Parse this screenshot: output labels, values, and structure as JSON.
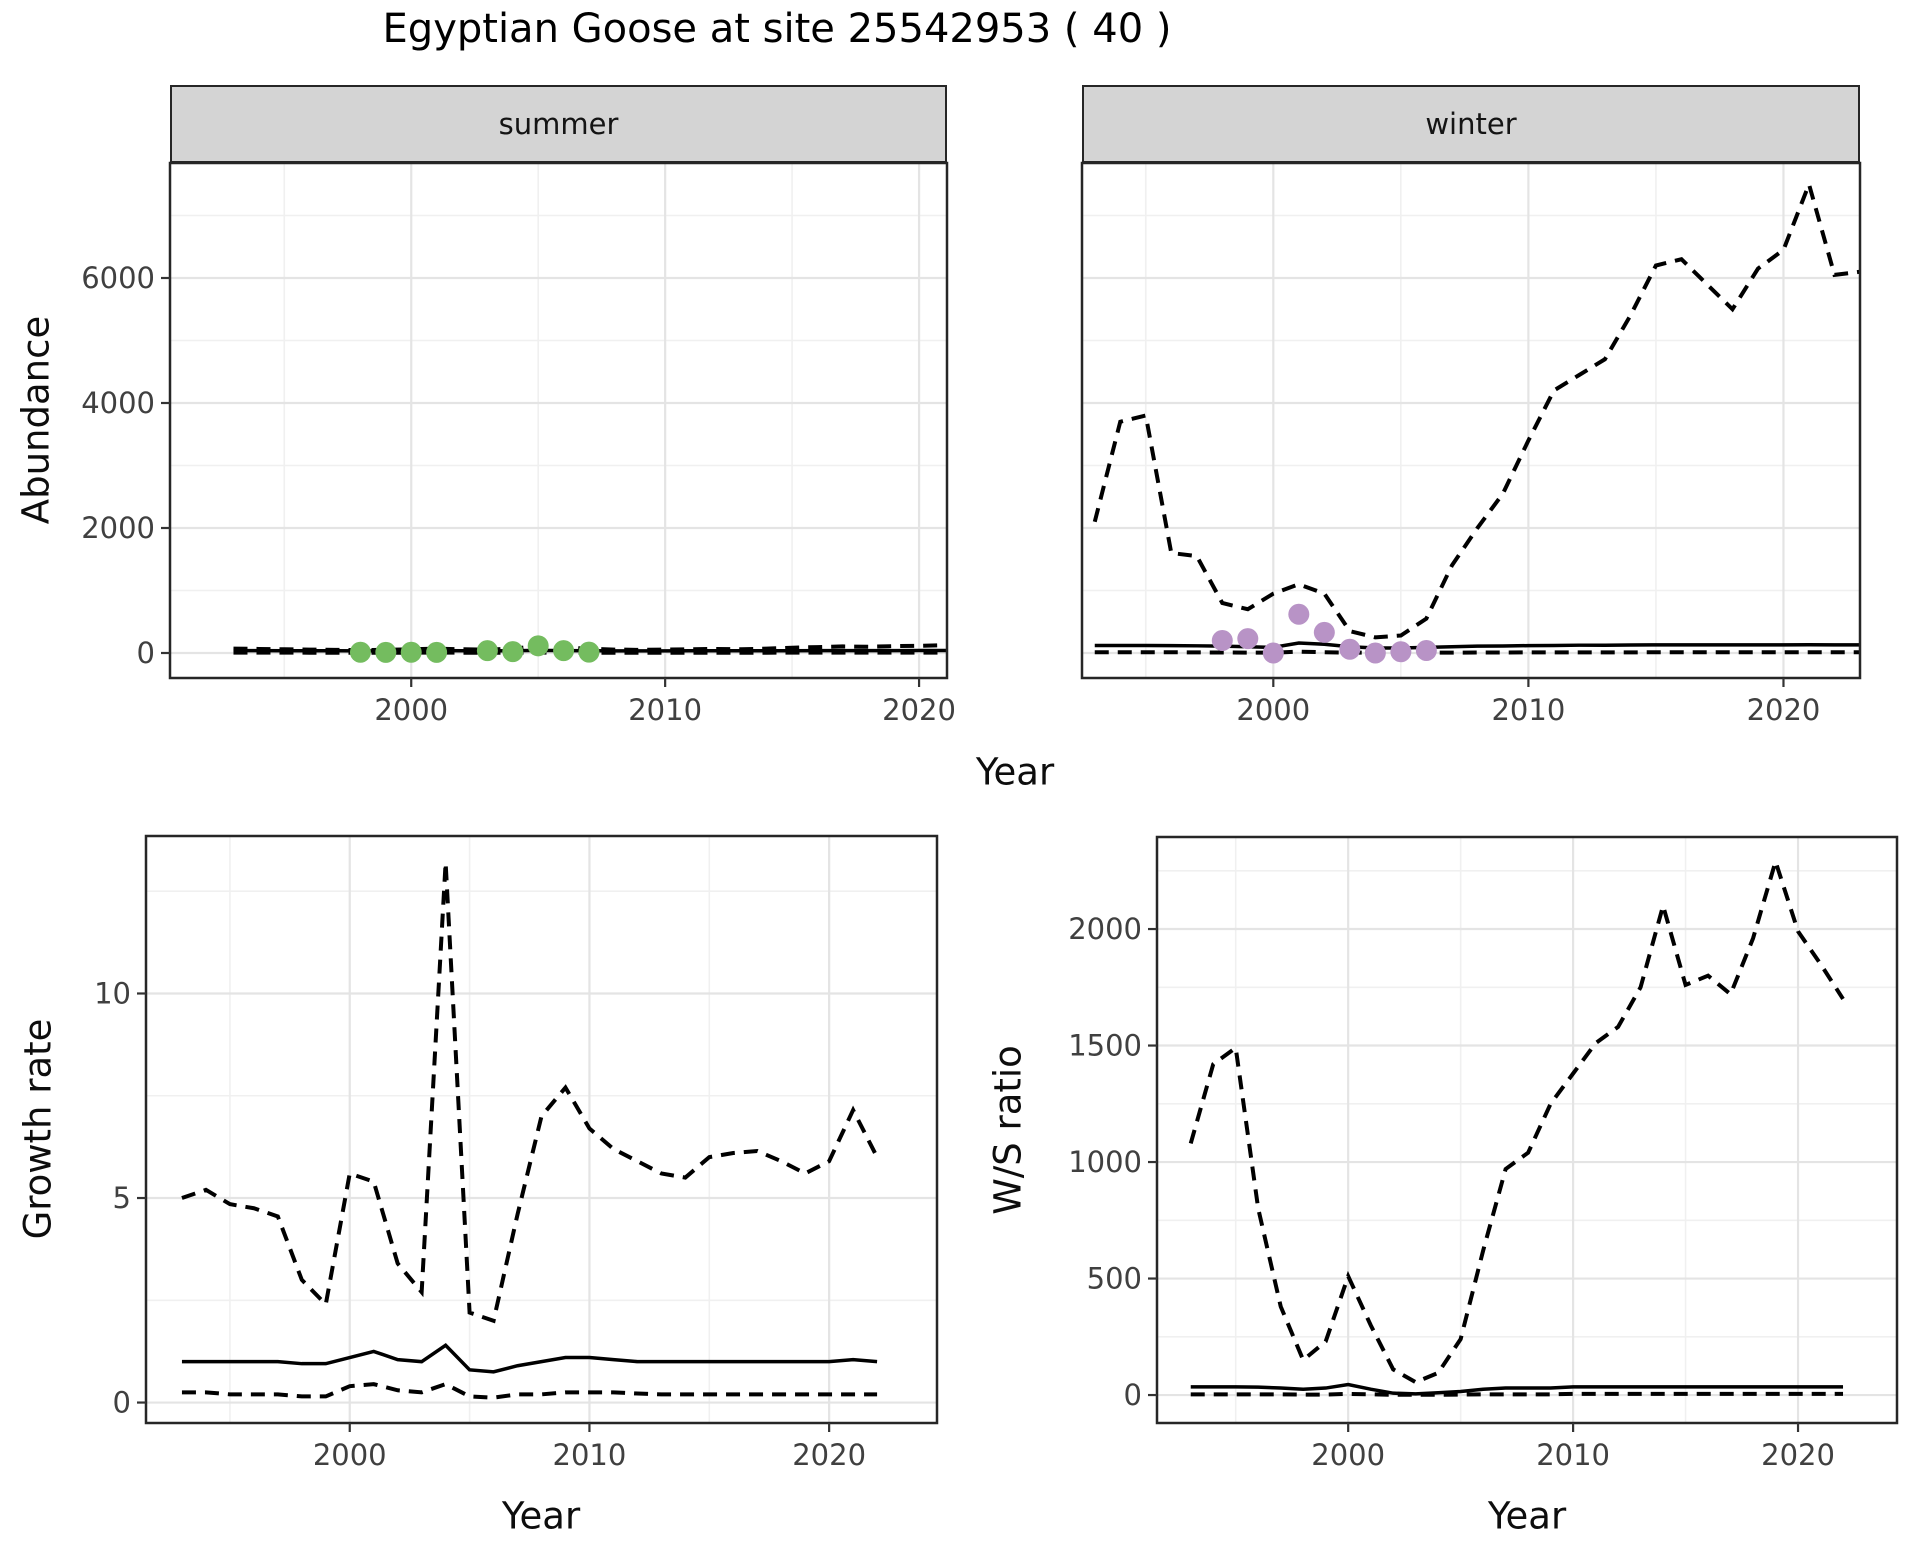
{
  "title": "Egyptian Goose at site 25542953 ( 40 )",
  "colors": {
    "summer_point": "#74bc5f",
    "winter_point": "#b893c6",
    "line": "#000000",
    "grid_major": "#e4e4e4",
    "grid_minor": "#f0f0f0",
    "strip_background": "#d4d4d4",
    "panel_border": "#262626"
  },
  "chart_data": {
    "type": "line",
    "xlabel": "Year",
    "grid": "on",
    "panels": [
      {
        "id": "abundance-summer",
        "strip": "summer",
        "ylabel": "Abundance",
        "x_domain": [
          1990.5,
          2021.1
        ],
        "y_domain": [
          -400,
          7840
        ],
        "x_major": [
          2000,
          2010,
          2020
        ],
        "x_labels": [
          "2000",
          "2010",
          "2020"
        ],
        "x_minor": [
          1995,
          2005,
          2015
        ],
        "y_major": [
          0,
          2000,
          4000,
          6000
        ],
        "y_labels": [
          "0",
          "2000",
          "4000",
          "6000"
        ],
        "y_minor": [
          1000,
          3000,
          5000,
          7000
        ],
        "years": [
          1993,
          1994,
          1995,
          1996,
          1997,
          1998,
          1999,
          2000,
          2001,
          2002,
          2003,
          2004,
          2005,
          2006,
          2007,
          2008,
          2009,
          2010,
          2011,
          2012,
          2013,
          2014,
          2015,
          2016,
          2017,
          2018,
          2019,
          2020,
          2021,
          2022,
          2023
        ],
        "series": [
          {
            "name": "upper_ci",
            "style": "dashed",
            "values": [
              70,
              65,
              60,
              55,
              50,
              45,
              50,
              60,
              70,
              60,
              55,
              70,
              110,
              85,
              70,
              55,
              50,
              55,
              60,
              65,
              60,
              70,
              85,
              95,
              105,
              100,
              110,
              115,
              125,
              115,
              110
            ]
          },
          {
            "name": "estimate",
            "style": "solid",
            "values": [
              38,
              38,
              37,
              36,
              36,
              35,
              35,
              36,
              38,
              36,
              35,
              36,
              42,
              38,
              36,
              35,
              35,
              35,
              36,
              36,
              36,
              36,
              37,
              38,
              39,
              38,
              39,
              40,
              41,
              40,
              40
            ]
          },
          {
            "name": "lower_ci",
            "style": "dashed",
            "values": [
              6,
              6,
              6,
              5,
              5,
              5,
              5,
              5,
              6,
              5,
              5,
              5,
              7,
              6,
              5,
              5,
              5,
              5,
              5,
              5,
              5,
              5,
              6,
              6,
              6,
              6,
              6,
              6,
              7,
              6,
              6
            ]
          }
        ],
        "points": {
          "name": "observed-counts",
          "color": "#74bc5f",
          "years": [
            1998,
            1999,
            2000,
            2001,
            2003,
            2004,
            2005,
            2006,
            2007
          ],
          "values": [
            12,
            10,
            12,
            10,
            38,
            22,
            115,
            38,
            14
          ]
        }
      },
      {
        "id": "abundance-winter",
        "strip": "winter",
        "ylabel": "",
        "x_domain": [
          1992.5,
          2023.0
        ],
        "y_domain": [
          -400,
          7840
        ],
        "x_major": [
          2000,
          2010,
          2020
        ],
        "x_labels": [
          "2000",
          "2010",
          "2020"
        ],
        "x_minor": [
          1995,
          2005,
          2015
        ],
        "y_major": [
          0,
          2000,
          4000,
          6000
        ],
        "y_labels": [
          "0",
          "2000",
          "4000",
          "6000"
        ],
        "y_minor": [
          1000,
          3000,
          5000,
          7000
        ],
        "years": [
          1993,
          1994,
          1995,
          1996,
          1997,
          1998,
          1999,
          2000,
          2001,
          2002,
          2003,
          2004,
          2005,
          2006,
          2007,
          2008,
          2009,
          2010,
          2011,
          2012,
          2013,
          2014,
          2015,
          2016,
          2017,
          2018,
          2019,
          2020,
          2021,
          2022,
          2023
        ],
        "series": [
          {
            "name": "upper_ci",
            "style": "dashed",
            "values": [
              2100,
              3700,
              3800,
              1600,
              1550,
              800,
              700,
              950,
              1100,
              950,
              350,
              250,
              280,
              550,
              1400,
              2000,
              2550,
              3400,
              4200,
              4450,
              4700,
              5400,
              6200,
              6300,
              5900,
              5500,
              6150,
              6450,
              7500,
              6050,
              6100
            ]
          },
          {
            "name": "estimate",
            "style": "solid",
            "values": [
              120,
              120,
              120,
              118,
              115,
              110,
              100,
              90,
              160,
              140,
              100,
              80,
              80,
              90,
              100,
              110,
              112,
              118,
              120,
              125,
              125,
              128,
              130,
              130,
              130,
              130,
              130,
              130,
              132,
              130,
              130
            ]
          },
          {
            "name": "lower_ci",
            "style": "dashed",
            "values": [
              12,
              12,
              12,
              12,
              10,
              8,
              6,
              5,
              22,
              12,
              6,
              5,
              5,
              6,
              6,
              8,
              8,
              10,
              10,
              10,
              10,
              10,
              12,
              12,
              12,
              12,
              12,
              12,
              12,
              12,
              12
            ]
          }
        ],
        "points": {
          "name": "observed-counts",
          "color": "#b893c6",
          "years": [
            1998,
            1999,
            2000,
            2001,
            2002,
            2003,
            2004,
            2005,
            2006
          ],
          "values": [
            200,
            230,
            0,
            620,
            330,
            60,
            0,
            20,
            40
          ]
        }
      },
      {
        "id": "growth-rate",
        "strip": null,
        "ylabel": "Growth rate",
        "x_domain": [
          1991.5,
          2024.5
        ],
        "y_domain": [
          -0.5,
          13.85
        ],
        "x_major": [
          2000,
          2010,
          2020
        ],
        "x_labels": [
          "2000",
          "2010",
          "2020"
        ],
        "x_minor": [
          1995,
          2005,
          2015
        ],
        "y_major": [
          0,
          5,
          10
        ],
        "y_labels": [
          "0",
          "5",
          "10"
        ],
        "y_minor": [
          2.5,
          7.5,
          12.5
        ],
        "years": [
          1993,
          1994,
          1995,
          1996,
          1997,
          1998,
          1999,
          2000,
          2001,
          2002,
          2003,
          2004,
          2005,
          2006,
          2007,
          2008,
          2009,
          2010,
          2011,
          2012,
          2013,
          2014,
          2015,
          2016,
          2017,
          2018,
          2019,
          2020,
          2021,
          2022
        ],
        "series": [
          {
            "name": "upper_ci",
            "style": "dashed",
            "values": [
              5.0,
              5.2,
              4.85,
              4.75,
              4.55,
              3.0,
              2.4,
              5.6,
              5.4,
              3.4,
              2.7,
              13.2,
              2.2,
              2.0,
              4.6,
              7.0,
              7.7,
              6.7,
              6.2,
              5.9,
              5.6,
              5.5,
              6.0,
              6.1,
              6.15,
              5.9,
              5.6,
              5.9,
              7.15,
              6.0
            ]
          },
          {
            "name": "estimate",
            "style": "solid",
            "values": [
              1.0,
              1.0,
              1.0,
              1.0,
              1.0,
              0.95,
              0.95,
              1.1,
              1.25,
              1.05,
              1.0,
              1.4,
              0.8,
              0.75,
              0.9,
              1.0,
              1.1,
              1.1,
              1.05,
              1.0,
              1.0,
              1.0,
              1.0,
              1.0,
              1.0,
              1.0,
              1.0,
              1.0,
              1.05,
              1.0
            ]
          },
          {
            "name": "lower_ci",
            "style": "dashed",
            "values": [
              0.25,
              0.25,
              0.2,
              0.2,
              0.2,
              0.15,
              0.15,
              0.4,
              0.45,
              0.3,
              0.25,
              0.45,
              0.15,
              0.12,
              0.2,
              0.2,
              0.25,
              0.25,
              0.25,
              0.22,
              0.2,
              0.2,
              0.2,
              0.2,
              0.2,
              0.2,
              0.2,
              0.2,
              0.2,
              0.2
            ]
          }
        ],
        "points": null
      },
      {
        "id": "ws-ratio",
        "strip": null,
        "ylabel": "W/S ratio",
        "x_domain": [
          1991.5,
          2024.4
        ],
        "y_domain": [
          -120,
          2395
        ],
        "x_major": [
          2000,
          2010,
          2020
        ],
        "x_labels": [
          "2000",
          "2010",
          "2020"
        ],
        "x_minor": [
          1995,
          2005,
          2015
        ],
        "y_major": [
          0,
          500,
          1000,
          1500,
          2000
        ],
        "y_labels": [
          "0",
          "500",
          "1000",
          "1500",
          "2000"
        ],
        "y_minor": [
          250,
          750,
          1250,
          1750,
          2250
        ],
        "years": [
          1993,
          1994,
          1995,
          1996,
          1997,
          1998,
          1999,
          2000,
          2001,
          2002,
          2003,
          2004,
          2005,
          2006,
          2007,
          2008,
          2009,
          2010,
          2011,
          2012,
          2013,
          2014,
          2015,
          2016,
          2017,
          2018,
          2019,
          2020,
          2021,
          2022
        ],
        "series": [
          {
            "name": "upper_ci",
            "style": "dashed",
            "values": [
              1080,
              1420,
              1490,
              800,
              380,
              150,
              230,
              510,
              300,
              110,
              55,
              95,
              240,
              620,
              970,
              1040,
              1250,
              1380,
              1510,
              1580,
              1750,
              2100,
              1760,
              1800,
              1720,
              1960,
              2290,
              1990,
              1850,
              1700
            ]
          },
          {
            "name": "estimate",
            "style": "solid",
            "values": [
              35,
              35,
              35,
              34,
              30,
              25,
              30,
              45,
              25,
              8,
              5,
              10,
              15,
              25,
              30,
              30,
              30,
              35,
              35,
              35,
              35,
              35,
              35,
              35,
              35,
              35,
              35,
              35,
              35,
              35
            ]
          },
          {
            "name": "lower_ci",
            "style": "dashed",
            "values": [
              3,
              3,
              3,
              3,
              3,
              2,
              2,
              5,
              3,
              1,
              1,
              1,
              2,
              3,
              3,
              3,
              3,
              5,
              5,
              5,
              5,
              5,
              5,
              5,
              5,
              5,
              5,
              5,
              5,
              5
            ]
          }
        ],
        "points": null
      }
    ]
  }
}
